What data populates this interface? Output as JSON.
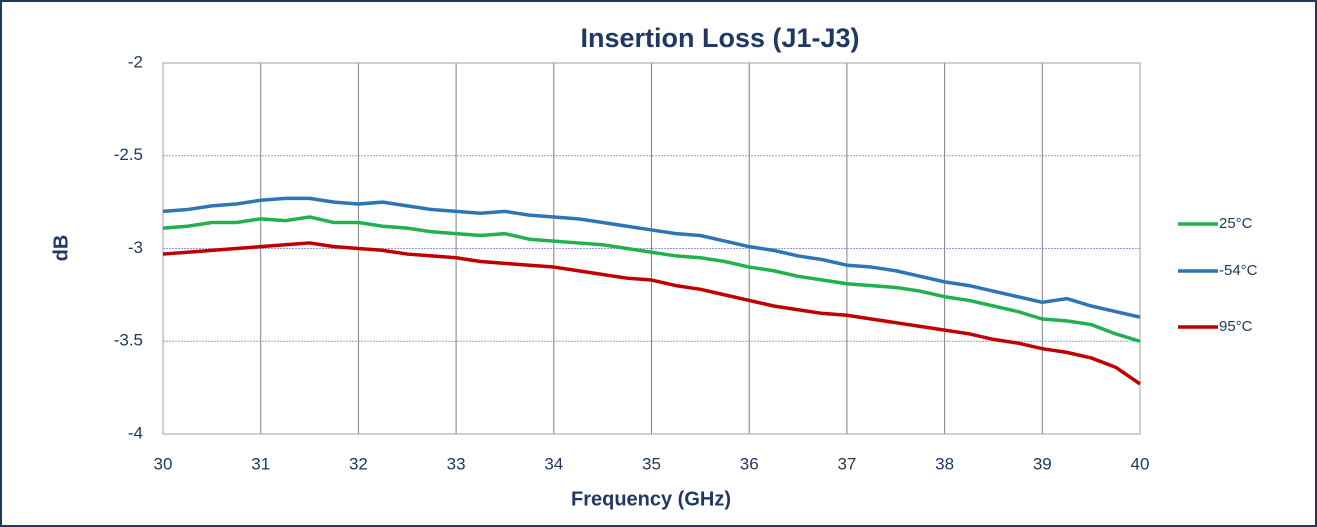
{
  "chart_data": {
    "type": "line",
    "title": "Insertion Loss (J1-J3)",
    "x_label": "Frequency (GHz)",
    "y_label": "dB",
    "x": [
      30,
      30.25,
      30.5,
      30.75,
      31,
      31.25,
      31.5,
      31.75,
      32,
      32.25,
      32.5,
      32.75,
      33,
      33.25,
      33.5,
      33.75,
      34,
      34.25,
      34.5,
      34.75,
      35,
      35.25,
      35.5,
      35.75,
      36,
      36.25,
      36.5,
      36.75,
      37,
      37.25,
      37.5,
      37.75,
      38,
      38.25,
      38.5,
      38.75,
      39,
      39.25,
      39.5,
      39.75,
      40
    ],
    "series": [
      {
        "name": "25°C",
        "color": "#22b14c",
        "values": [
          -2.89,
          -2.88,
          -2.86,
          -2.86,
          -2.84,
          -2.85,
          -2.83,
          -2.86,
          -2.86,
          -2.88,
          -2.89,
          -2.91,
          -2.92,
          -2.93,
          -2.92,
          -2.95,
          -2.96,
          -2.97,
          -2.98,
          -3.0,
          -3.02,
          -3.04,
          -3.05,
          -3.07,
          -3.1,
          -3.12,
          -3.15,
          -3.17,
          -3.19,
          -3.2,
          -3.21,
          -3.23,
          -3.26,
          -3.28,
          -3.31,
          -3.34,
          -3.38,
          -3.39,
          -3.41,
          -3.46,
          -3.5
        ]
      },
      {
        "name": "-54°C",
        "color": "#2e75b6",
        "values": [
          -2.8,
          -2.79,
          -2.77,
          -2.76,
          -2.74,
          -2.73,
          -2.73,
          -2.75,
          -2.76,
          -2.75,
          -2.77,
          -2.79,
          -2.8,
          -2.81,
          -2.8,
          -2.82,
          -2.83,
          -2.84,
          -2.86,
          -2.88,
          -2.9,
          -2.92,
          -2.93,
          -2.96,
          -2.99,
          -3.01,
          -3.04,
          -3.06,
          -3.09,
          -3.1,
          -3.12,
          -3.15,
          -3.18,
          -3.2,
          -3.23,
          -3.26,
          -3.29,
          -3.27,
          -3.31,
          -3.34,
          -3.37
        ]
      },
      {
        "name": "95°C",
        "color": "#c00000",
        "values": [
          -3.03,
          -3.02,
          -3.01,
          -3.0,
          -2.99,
          -2.98,
          -2.97,
          -2.99,
          -3.0,
          -3.01,
          -3.03,
          -3.04,
          -3.05,
          -3.07,
          -3.08,
          -3.09,
          -3.1,
          -3.12,
          -3.14,
          -3.16,
          -3.17,
          -3.2,
          -3.22,
          -3.25,
          -3.28,
          -3.31,
          -3.33,
          -3.35,
          -3.36,
          -3.38,
          -3.4,
          -3.42,
          -3.44,
          -3.46,
          -3.49,
          -3.51,
          -3.54,
          -3.56,
          -3.59,
          -3.64,
          -3.73
        ]
      }
    ],
    "xlim": [
      30,
      40
    ],
    "xticks": [
      30,
      31,
      32,
      33,
      34,
      35,
      36,
      37,
      38,
      39,
      40
    ],
    "ylim": [
      -4,
      -2
    ],
    "yticks": [
      -2,
      -2.5,
      -3,
      -3.5,
      -4
    ],
    "grid": true,
    "legend": "right"
  }
}
